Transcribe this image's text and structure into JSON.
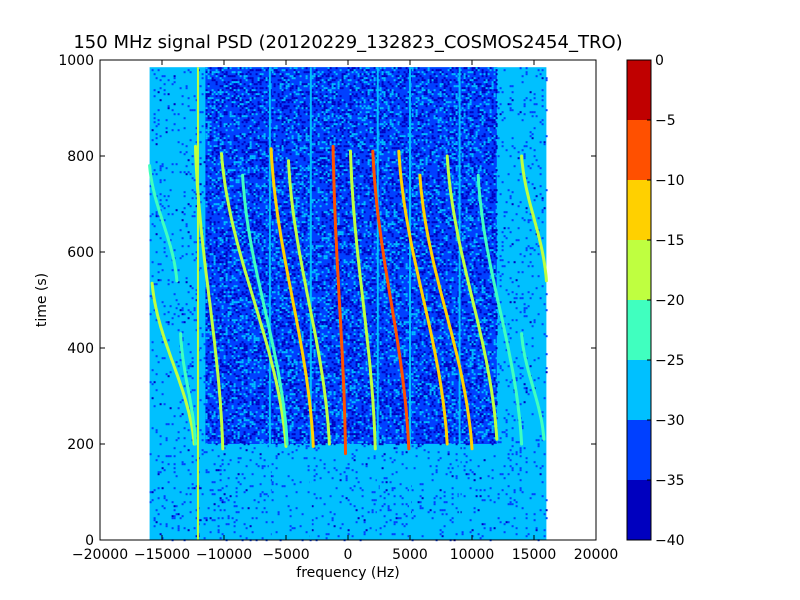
{
  "chart_data": {
    "type": "heatmap",
    "title": "150 MHz signal PSD (20120229_132823_COSMOS2454_TRO)",
    "xlabel": "frequency (Hz)",
    "ylabel": "time (s)",
    "xlim": [
      -20000,
      20000
    ],
    "ylim": [
      0,
      1000
    ],
    "xticks": [
      -20000,
      -15000,
      -10000,
      -5000,
      0,
      5000,
      10000,
      15000,
      20000
    ],
    "xtick_labels": [
      "−20000",
      "−15000",
      "−10000",
      "−5000",
      "0",
      "5000",
      "10000",
      "15000",
      "20000"
    ],
    "yticks": [
      0,
      200,
      400,
      600,
      800,
      1000
    ],
    "ytick_labels": [
      "0",
      "200",
      "400",
      "600",
      "800",
      "1000"
    ],
    "data_extent": {
      "freq": [
        -16000,
        16000
      ],
      "time": [
        0,
        985
      ]
    },
    "colorbar": {
      "levels": [
        -40,
        -35,
        -30,
        -25,
        -20,
        -15,
        -10,
        -5,
        0
      ],
      "tick_labels": [
        "−40",
        "−35",
        "−30",
        "−25",
        "−20",
        "−15",
        "−10",
        "−5",
        "0"
      ],
      "colors": [
        "#0000bf",
        "#0040ff",
        "#00c0ff",
        "#40ffbf",
        "#bfff40",
        "#ffd000",
        "#ff5000",
        "#c00000"
      ]
    },
    "background_level_db": -27,
    "noise_band_db": -32,
    "noise_band_freq": [
      -11500,
      12000
    ],
    "noise_band_time": [
      200,
      985
    ],
    "vertical_lines": [
      {
        "freq": -12100,
        "db": -20
      },
      {
        "freq": -6300,
        "db": -27
      },
      {
        "freq": -3000,
        "db": -27
      },
      {
        "freq": 2400,
        "db": -27
      },
      {
        "freq": 5000,
        "db": -27
      },
      {
        "freq": 9000,
        "db": -27
      }
    ],
    "traces": [
      {
        "t_start": 780,
        "t_end": 540,
        "f_top": -16000,
        "f_bot": -13800,
        "db": -22
      },
      {
        "t_start": 535,
        "t_end": 200,
        "f_top": -15800,
        "f_bot": -12400,
        "db": -20
      },
      {
        "t_start": 430,
        "t_end": 200,
        "f_top": -13500,
        "f_bot": -12300,
        "db": -24
      },
      {
        "t_start": 820,
        "t_end": 190,
        "f_top": -12300,
        "f_bot": -10100,
        "db": -20
      },
      {
        "t_start": 805,
        "t_end": 195,
        "f_top": -10200,
        "f_bot": -5000,
        "db": -20
      },
      {
        "t_start": 760,
        "t_end": 200,
        "f_top": -8500,
        "f_bot": -4900,
        "db": -24
      },
      {
        "t_start": 815,
        "t_end": 195,
        "f_top": -6200,
        "f_bot": -2800,
        "db": -15
      },
      {
        "t_start": 790,
        "t_end": 200,
        "f_top": -4800,
        "f_bot": -1500,
        "db": -20
      },
      {
        "t_start": 820,
        "t_end": 180,
        "f_top": -1200,
        "f_bot": -200,
        "db": -10
      },
      {
        "t_start": 810,
        "t_end": 190,
        "f_top": 200,
        "f_bot": 2200,
        "db": -20
      },
      {
        "t_start": 810,
        "t_end": 190,
        "f_top": 2000,
        "f_bot": 4900,
        "db": -10
      },
      {
        "t_start": 810,
        "t_end": 200,
        "f_top": 4100,
        "f_bot": 8000,
        "db": -15
      },
      {
        "t_start": 760,
        "t_end": 190,
        "f_top": 5800,
        "f_bot": 10000,
        "db": -15
      },
      {
        "t_start": 800,
        "t_end": 210,
        "f_top": 8000,
        "f_bot": 12000,
        "db": -20
      },
      {
        "t_start": 760,
        "t_end": 200,
        "f_top": 10500,
        "f_bot": 14000,
        "db": -22
      },
      {
        "t_start": 430,
        "t_end": 210,
        "f_top": 14000,
        "f_bot": 15800,
        "db": -24
      },
      {
        "t_start": 800,
        "t_end": 540,
        "f_top": 14000,
        "f_bot": 16000,
        "db": -20
      }
    ]
  }
}
